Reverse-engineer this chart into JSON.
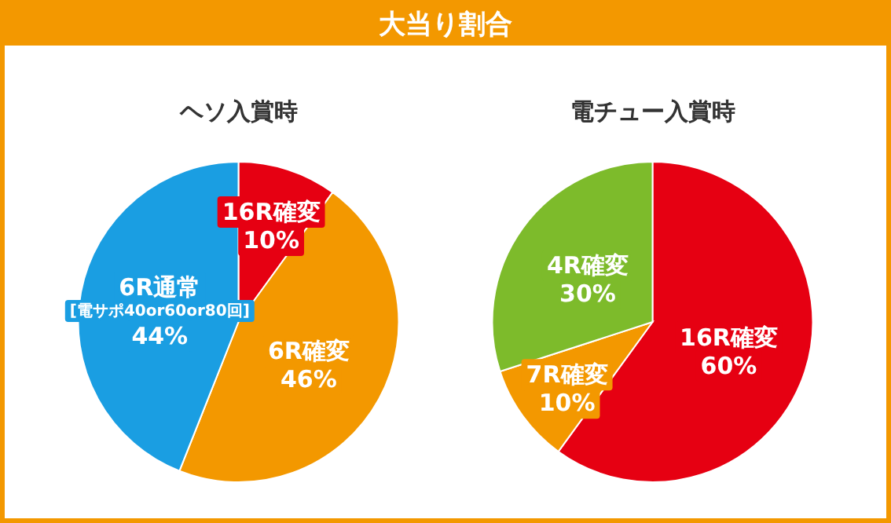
{
  "chart_data": [
    {
      "type": "other",
      "title": "大当り割合"
    },
    {
      "type": "pie",
      "title": "ヘソ入賞時",
      "categories": [
        "16R確変",
        "6R確変",
        "6R通常\n[電サポ40or60or80回]"
      ],
      "values": [
        10,
        46,
        44
      ],
      "colors": [
        "#e60012",
        "#f39800",
        "#1a9ee2"
      ],
      "value_labels": [
        "10%",
        "46%",
        "44%"
      ]
    },
    {
      "type": "pie",
      "title": "電チュー入賞時",
      "categories": [
        "16R確変",
        "7R確変",
        "4R確変"
      ],
      "values": [
        60,
        10,
        30
      ],
      "colors": [
        "#e60012",
        "#f39800",
        "#7dbb2b"
      ],
      "value_labels": [
        "60%",
        "10%",
        "30%"
      ]
    }
  ]
}
